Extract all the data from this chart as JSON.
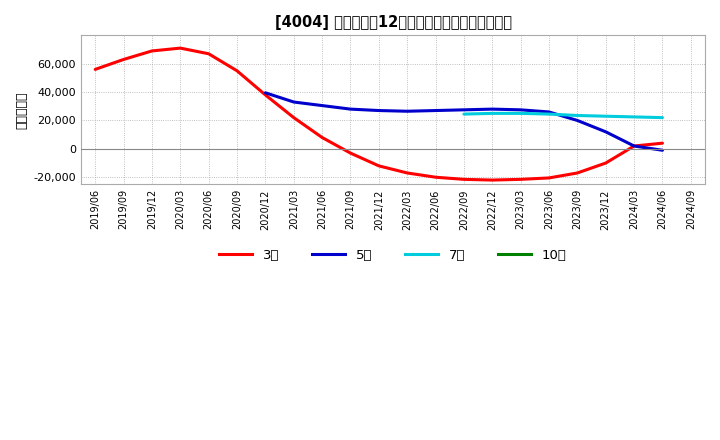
{
  "title_text": "[4004] 当期純利益12か月移動合計の平均値の推移",
  "ylabel": "（百万円）",
  "background_color": "#ffffff",
  "plot_bg_color": "#ffffff",
  "grid_color": "#aaaaaa",
  "ylim": [
    -25000,
    80000
  ],
  "yticks": [
    -20000,
    0,
    20000,
    40000,
    60000
  ],
  "series": {
    "3年": {
      "color": "#ff0000",
      "dates": [
        "2019/06",
        "2019/09",
        "2019/12",
        "2020/03",
        "2020/06",
        "2020/09",
        "2020/12",
        "2021/03",
        "2021/06",
        "2021/09",
        "2021/12",
        "2022/03",
        "2022/06",
        "2022/09",
        "2022/12",
        "2023/03",
        "2023/06",
        "2023/09",
        "2023/12",
        "2024/03",
        "2024/06"
      ],
      "values": [
        56000,
        63000,
        69000,
        71000,
        67000,
        55000,
        38000,
        22000,
        8000,
        -3000,
        -12000,
        -17000,
        -20000,
        -21500,
        -22000,
        -21500,
        -20500,
        -17000,
        -10000,
        2000,
        4000
      ]
    },
    "5年": {
      "color": "#0000cc",
      "dates": [
        "2020/12",
        "2021/03",
        "2021/06",
        "2021/09",
        "2021/12",
        "2022/03",
        "2022/06",
        "2022/09",
        "2022/12",
        "2023/03",
        "2023/06",
        "2023/09",
        "2023/12",
        "2024/03",
        "2024/06"
      ],
      "values": [
        39500,
        33000,
        30500,
        28000,
        27000,
        26500,
        27000,
        27500,
        28000,
        27500,
        26000,
        20000,
        12000,
        2000,
        -1000
      ]
    },
    "7年": {
      "color": "#00ccdd",
      "dates": [
        "2022/09",
        "2022/12",
        "2023/03",
        "2023/06",
        "2023/09",
        "2023/12",
        "2024/03",
        "2024/06"
      ],
      "values": [
        24500,
        25000,
        25000,
        24500,
        23500,
        23000,
        22500,
        22000
      ]
    },
    "10年": {
      "color": "#008000",
      "dates": [],
      "values": []
    }
  },
  "legend_labels": [
    "3年",
    "5年",
    "7年",
    "10年"
  ],
  "legend_colors": [
    "#ff0000",
    "#0000cc",
    "#00ccdd",
    "#008000"
  ],
  "all_dates": [
    "2019/06",
    "2019/09",
    "2019/12",
    "2020/03",
    "2020/06",
    "2020/09",
    "2020/12",
    "2021/03",
    "2021/06",
    "2021/09",
    "2021/12",
    "2022/03",
    "2022/06",
    "2022/09",
    "2022/12",
    "2023/03",
    "2023/06",
    "2023/09",
    "2023/12",
    "2024/03",
    "2024/06",
    "2024/09"
  ]
}
